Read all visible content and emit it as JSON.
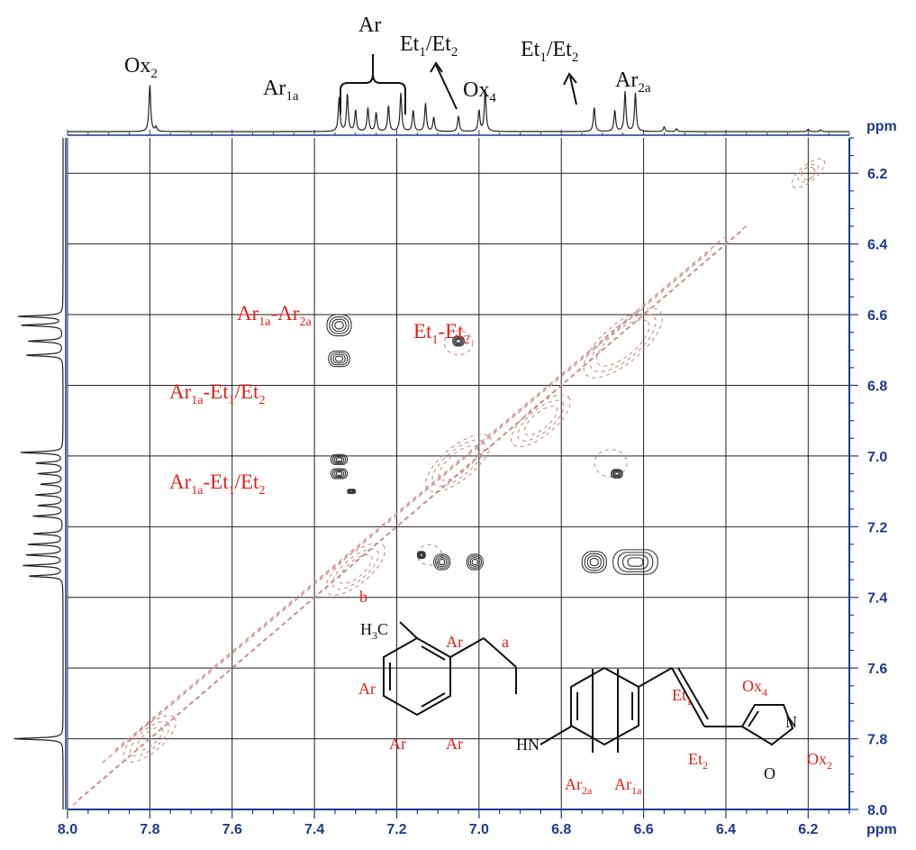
{
  "chart_data": {
    "type": "contour",
    "x_axis": {
      "range": [
        8.0,
        6.1
      ],
      "ticks": [
        8.0,
        7.8,
        7.6,
        7.4,
        7.2,
        7.0,
        6.8,
        6.6,
        6.4,
        6.2
      ],
      "tick_labels": [
        "8.0",
        "7.8",
        "7.6",
        "7.4",
        "7.2",
        "7.0",
        "6.8",
        "6.6",
        "6.4",
        "6.2"
      ],
      "unit": "ppm"
    },
    "y_axis": {
      "range": [
        8.0,
        6.1
      ],
      "ticks": [
        6.2,
        6.4,
        6.6,
        6.8,
        7.0,
        7.2,
        7.4,
        7.6,
        7.8,
        8.0
      ],
      "tick_labels": [
        "6.2",
        "6.4",
        "6.6",
        "6.8",
        "7.0",
        "7.2",
        "7.4",
        "7.6",
        "7.8",
        "8.0"
      ],
      "unit": "ppm"
    },
    "grid": true,
    "top_projection_peaks": [
      {
        "ppm": 7.8,
        "height": 1.0
      },
      {
        "ppm": 7.785,
        "height": 0.1
      },
      {
        "ppm": 7.34,
        "height": 0.72
      },
      {
        "ppm": 7.32,
        "height": 0.8
      },
      {
        "ppm": 7.3,
        "height": 0.45
      },
      {
        "ppm": 7.27,
        "height": 0.5
      },
      {
        "ppm": 7.25,
        "height": 0.4
      },
      {
        "ppm": 7.22,
        "height": 0.55
      },
      {
        "ppm": 7.19,
        "height": 0.82
      },
      {
        "ppm": 7.16,
        "height": 0.45
      },
      {
        "ppm": 7.13,
        "height": 0.6
      },
      {
        "ppm": 7.11,
        "height": 0.3
      },
      {
        "ppm": 7.05,
        "height": 0.33
      },
      {
        "ppm": 7.0,
        "height": 0.45
      },
      {
        "ppm": 6.985,
        "height": 0.9
      },
      {
        "ppm": 6.72,
        "height": 0.52
      },
      {
        "ppm": 6.67,
        "height": 0.45
      },
      {
        "ppm": 6.645,
        "height": 0.85
      },
      {
        "ppm": 6.62,
        "height": 0.82
      },
      {
        "ppm": 6.55,
        "height": 0.1
      },
      {
        "ppm": 6.52,
        "height": 0.06
      },
      {
        "ppm": 6.2,
        "height": 0.05
      },
      {
        "ppm": 6.17,
        "height": 0.04
      }
    ],
    "left_projection_peaks": [
      {
        "ppm": 6.605,
        "height": 0.9
      },
      {
        "ppm": 6.63,
        "height": 0.85
      },
      {
        "ppm": 6.675,
        "height": 0.7
      },
      {
        "ppm": 6.715,
        "height": 0.75
      },
      {
        "ppm": 6.99,
        "height": 0.85
      },
      {
        "ppm": 7.02,
        "height": 0.55
      },
      {
        "ppm": 7.05,
        "height": 0.5
      },
      {
        "ppm": 7.08,
        "height": 0.45
      },
      {
        "ppm": 7.11,
        "height": 0.55
      },
      {
        "ppm": 7.14,
        "height": 0.5
      },
      {
        "ppm": 7.17,
        "height": 0.6
      },
      {
        "ppm": 7.22,
        "height": 0.6
      },
      {
        "ppm": 7.25,
        "height": 0.7
      },
      {
        "ppm": 7.28,
        "height": 0.75
      },
      {
        "ppm": 7.31,
        "height": 0.8
      },
      {
        "ppm": 7.34,
        "height": 0.7
      },
      {
        "ppm": 7.8,
        "height": 1.0
      }
    ],
    "positive_cross_peaks": [
      {
        "x": 7.34,
        "y": 6.63,
        "rx": 0.03,
        "ry": 0.03
      },
      {
        "x": 7.34,
        "y": 6.725,
        "rx": 0.026,
        "ry": 0.022
      },
      {
        "x": 7.05,
        "y": 6.675,
        "rx": 0.014,
        "ry": 0.014
      },
      {
        "x": 7.34,
        "y": 7.01,
        "rx": 0.02,
        "ry": 0.014
      },
      {
        "x": 7.34,
        "y": 7.05,
        "rx": 0.02,
        "ry": 0.014
      },
      {
        "x": 7.31,
        "y": 7.1,
        "rx": 0.01,
        "ry": 0.006
      },
      {
        "x": 6.665,
        "y": 7.05,
        "rx": 0.014,
        "ry": 0.012
      },
      {
        "x": 7.14,
        "y": 7.28,
        "rx": 0.01,
        "ry": 0.01
      },
      {
        "x": 7.09,
        "y": 7.3,
        "rx": 0.02,
        "ry": 0.022
      },
      {
        "x": 7.01,
        "y": 7.3,
        "rx": 0.02,
        "ry": 0.022
      },
      {
        "x": 6.72,
        "y": 7.3,
        "rx": 0.03,
        "ry": 0.03
      },
      {
        "x": 6.62,
        "y": 7.3,
        "rx": 0.055,
        "ry": 0.035
      }
    ],
    "peak_labels_top": [
      {
        "text": "Ox",
        "sub": "2"
      },
      {
        "text": "Ar",
        "sub": "1a"
      },
      {
        "text": "Ar",
        "sub": ""
      },
      {
        "text": "Et",
        "sub": "1",
        "text2": "/Et",
        "sub2": "2"
      },
      {
        "text": "Ox",
        "sub": "4"
      },
      {
        "text": "Et",
        "sub": "1",
        "text2": "/Et",
        "sub2": "2"
      },
      {
        "text": "Ar",
        "sub": "2a"
      }
    ],
    "cross_labels": [
      {
        "text": "Ar",
        "sub": "1a",
        "text2": "-Ar",
        "sub2": "2a"
      },
      {
        "text": "Et",
        "sub": "1",
        "text2": "-Et",
        "sub2": "2"
      },
      {
        "text": "Ar",
        "sub": "1a",
        "text2": "-Et",
        "sub2": "1",
        "text3": "/Et",
        "sub3": "2"
      },
      {
        "text": "Ar",
        "sub": "1a",
        "text2": "-Et",
        "sub2": "1",
        "text3": "/Et",
        "sub3": "2"
      }
    ],
    "molecule_labels": {
      "ch3": "H",
      "ch3_sub": "3",
      "ch3_c": "C",
      "b": "b",
      "a": "a",
      "ar1": "Ar",
      "ar2": "Ar",
      "ar3": "Ar",
      "ar4": "Ar",
      "nh": "HN",
      "et1": "Et",
      "et1_sub": "1",
      "et2": "Et",
      "et2_sub": "2",
      "ox4": "Ox",
      "ox4_sub": "4",
      "ox2": "Ox",
      "ox2_sub": "2",
      "n": "N",
      "o": "O",
      "ar2a": "Ar",
      "ar2a_sub": "2a",
      "ar1a": "Ar",
      "ar1a_sub": "1a"
    },
    "ppm_label": "ppm",
    "colors": {
      "axis": "#1f3a8a",
      "positive": "#333333",
      "negative": "#c98a8a",
      "label": "#e0201c"
    }
  }
}
